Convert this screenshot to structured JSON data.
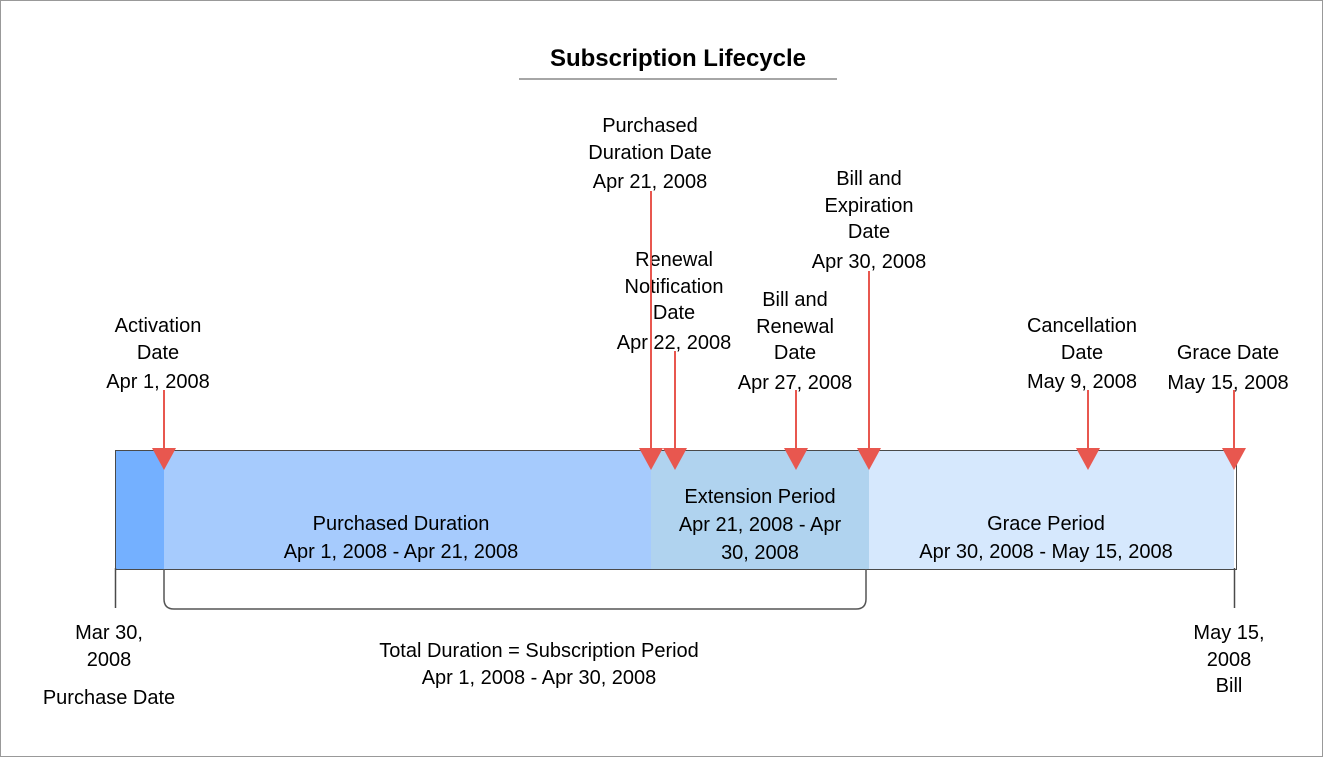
{
  "title": "Subscription Lifecycle",
  "colors": {
    "pre_period": "#74b0ff",
    "purchased": "#a6cbfd",
    "extension": "#b0d3ef",
    "grace": "#d6e8fd",
    "marker": "#e8574f",
    "bracket": "#555555"
  },
  "markers": [
    {
      "id": "activation",
      "lines": [
        "Activation",
        "Date"
      ],
      "date": "Apr 1, 2008"
    },
    {
      "id": "purchased-duration",
      "lines": [
        "Purchased",
        "Duration Date"
      ],
      "date": "Apr 21, 2008"
    },
    {
      "id": "renewal-notification",
      "lines": [
        "Renewal",
        "Notification",
        "Date"
      ],
      "date": "Apr 22, 2008"
    },
    {
      "id": "bill-renewal",
      "lines": [
        "Bill and",
        "Renewal",
        "Date"
      ],
      "date": "Apr 27, 2008"
    },
    {
      "id": "bill-expiration",
      "lines": [
        "Bill and",
        "Expiration",
        "Date"
      ],
      "date": "Apr 30, 2008"
    },
    {
      "id": "cancellation",
      "lines": [
        "Cancellation",
        "Date"
      ],
      "date": "May 9, 2008"
    },
    {
      "id": "grace",
      "lines": [
        "Grace Date"
      ],
      "date": "May 15, 2008"
    }
  ],
  "periods": [
    {
      "id": "purchased",
      "lines": [
        "Purchased Duration",
        "Apr 1, 2008 - Apr 21, 2008"
      ]
    },
    {
      "id": "extension",
      "lines": [
        "Extension Period",
        "Apr 21, 2008 - Apr",
        "30, 2008"
      ]
    },
    {
      "id": "grace",
      "lines": [
        "Grace Period",
        "Apr 30, 2008 - May 15, 2008"
      ]
    }
  ],
  "start": {
    "lines": [
      "Mar 30,",
      "2008"
    ],
    "caption": "Purchase Date"
  },
  "end": {
    "lines": [
      "May 15,",
      "2008",
      "Bill"
    ]
  },
  "total": {
    "lines": [
      "Total Duration = Subscription Period",
      "Apr 1, 2008 - Apr 30, 2008"
    ]
  }
}
